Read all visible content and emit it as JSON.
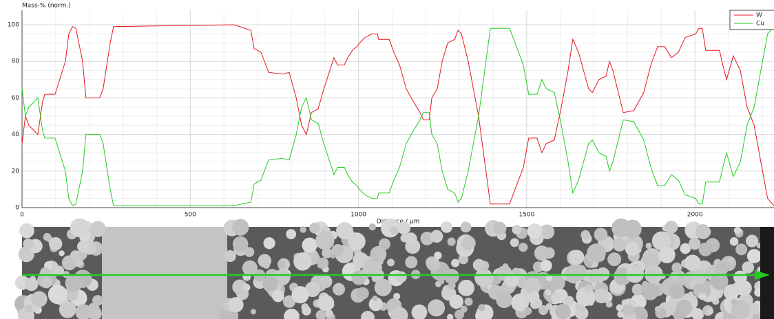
{
  "chart_data": {
    "type": "line",
    "y_label": "Mass-% (norm.)",
    "x_label": "Distance / µm",
    "x": [
      0,
      10,
      20,
      47,
      61,
      68,
      98,
      129,
      139,
      150,
      160,
      180,
      190,
      231,
      241,
      262,
      272,
      630,
      680,
      690,
      710,
      733,
      774,
      794,
      815,
      831,
      845,
      860,
      880,
      897,
      913,
      927,
      938,
      958,
      968,
      982,
      995,
      1003,
      1019,
      1040,
      1056,
      1060,
      1091,
      1105,
      1122,
      1142,
      1163,
      1183,
      1193,
      1210,
      1218,
      1234,
      1249,
      1265,
      1286,
      1296,
      1306,
      1326,
      1357,
      1392,
      1449,
      1490,
      1506,
      1531,
      1545,
      1558,
      1582,
      1603,
      1623,
      1637,
      1654,
      1684,
      1695,
      1715,
      1736,
      1746,
      1756,
      1787,
      1818,
      1848,
      1869,
      1889,
      1910,
      1930,
      1951,
      1971,
      2002,
      2012,
      2022,
      2032,
      2073,
      2083,
      2094,
      2114,
      2135,
      2155,
      2176,
      2196,
      2216,
      2235
    ],
    "series": [
      {
        "name": "W",
        "color": "#e8141c",
        "values": [
          35,
          50,
          45,
          40,
          58,
          62,
          62,
          80,
          95,
          99,
          98,
          80,
          60,
          60,
          65,
          90,
          99,
          100,
          97,
          87,
          85,
          74,
          73,
          74,
          60,
          45,
          40,
          52,
          54,
          65,
          74,
          82,
          78,
          78,
          82,
          86,
          88,
          90,
          93,
          95,
          95,
          92,
          92,
          85,
          78,
          65,
          58,
          52,
          48,
          48,
          60,
          65,
          80,
          90,
          92,
          97,
          95,
          80,
          50,
          2,
          2,
          22,
          38,
          38,
          30,
          35,
          37,
          55,
          75,
          92,
          85,
          65,
          63,
          70,
          72,
          80,
          75,
          52,
          53,
          63,
          78,
          88,
          88,
          82,
          85,
          93,
          95,
          98,
          98,
          86,
          86,
          78,
          70,
          83,
          75,
          55,
          45,
          25,
          5,
          1
        ]
      },
      {
        "name": "Cu",
        "color": "#22cc22",
        "values": [
          65,
          50,
          55,
          60,
          42,
          38,
          38,
          20,
          5,
          1,
          2,
          20,
          40,
          40,
          35,
          10,
          1,
          1,
          3,
          13,
          15,
          26,
          27,
          26,
          40,
          55,
          60,
          48,
          46,
          35,
          26,
          18,
          22,
          22,
          18,
          14,
          12,
          10,
          7,
          5,
          5,
          8,
          8,
          15,
          22,
          35,
          42,
          48,
          52,
          52,
          40,
          35,
          20,
          10,
          8,
          3,
          5,
          20,
          50,
          98,
          98,
          78,
          62,
          62,
          70,
          65,
          63,
          45,
          25,
          8,
          15,
          35,
          37,
          30,
          28,
          20,
          25,
          48,
          47,
          37,
          22,
          12,
          12,
          18,
          15,
          7,
          5,
          2,
          2,
          14,
          14,
          22,
          30,
          17,
          25,
          45,
          55,
          75,
          95,
          99
        ]
      }
    ],
    "xlim": [
      0,
      2235
    ],
    "ylim": [
      0,
      107.9
    ],
    "xticks": [
      0,
      500,
      1000,
      1500,
      2000
    ],
    "yticks": [
      0,
      20,
      40,
      60,
      80,
      100
    ],
    "grid": true,
    "legend": "top-right"
  }
}
